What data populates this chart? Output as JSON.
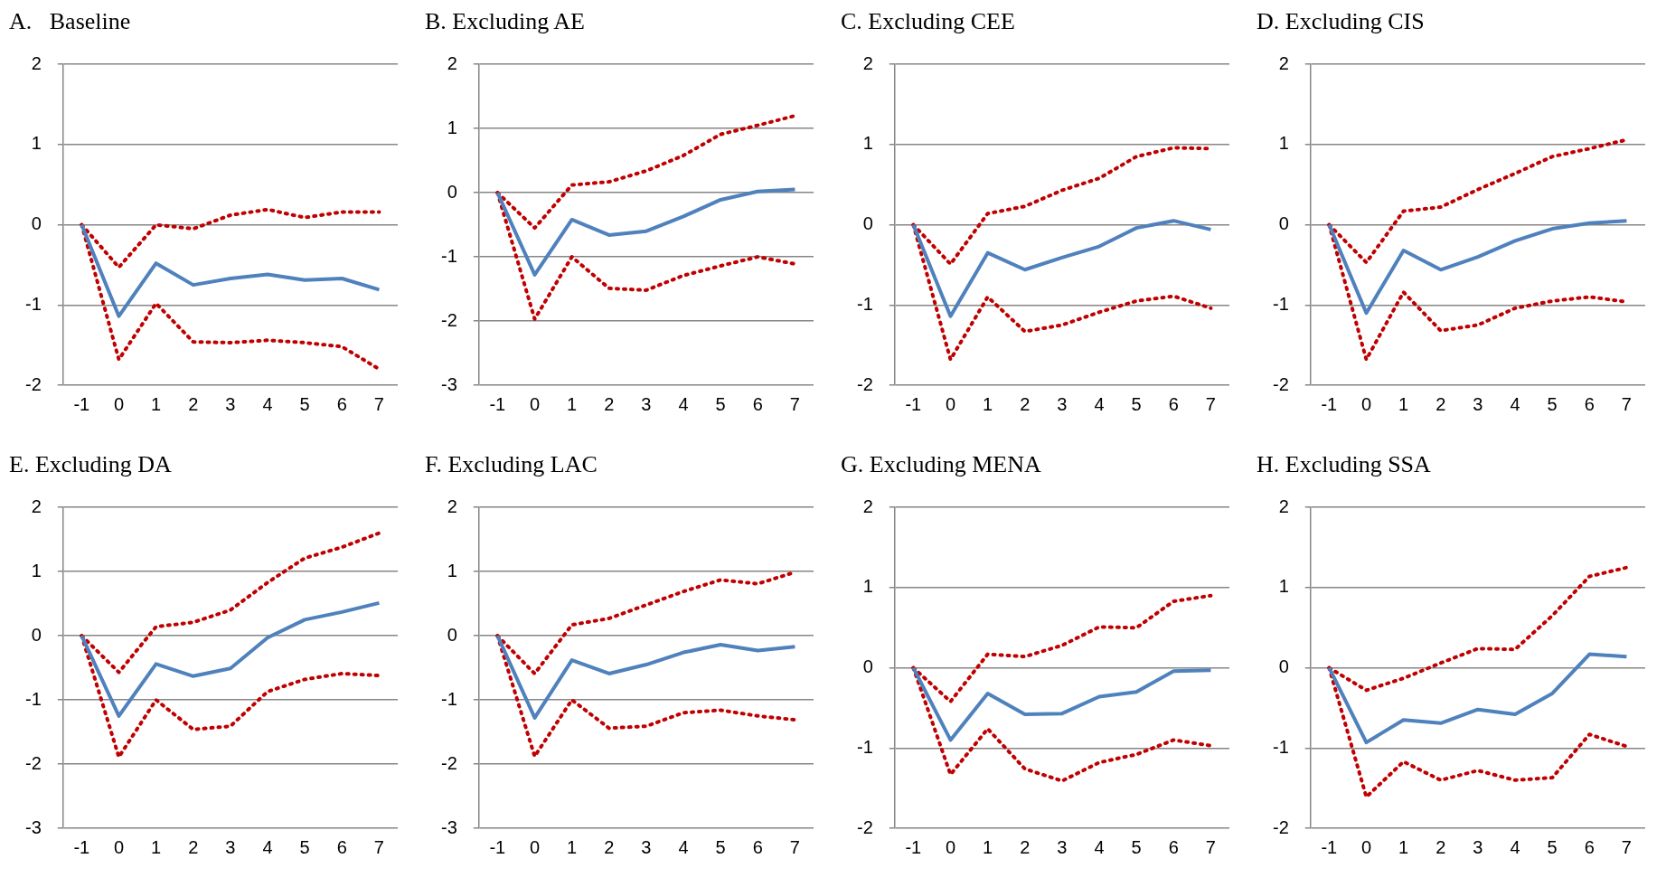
{
  "chart_data": [
    {
      "type": "line",
      "title": "A.   Baseline",
      "categories": [
        "-1",
        "0",
        "1",
        "2",
        "3",
        "4",
        "5",
        "6",
        "7"
      ],
      "ylim": [
        -2,
        2
      ],
      "yticks": [
        -2,
        -1,
        0,
        1,
        2
      ],
      "grid": "y",
      "legend": false,
      "marker": "none",
      "series": [
        {
          "color": "#4f81bd",
          "line_style": "solid",
          "values": [
            0,
            -1.14,
            -0.48,
            -0.75,
            -0.67,
            -0.62,
            -0.69,
            -0.67,
            -0.81
          ]
        },
        {
          "color": "#c00000",
          "line_style": "dotted",
          "values": [
            0,
            -0.53,
            0,
            -0.05,
            0.12,
            0.19,
            0.09,
            0.16,
            0.16
          ]
        },
        {
          "color": "#c00000",
          "line_style": "dotted",
          "values": [
            0,
            -1.68,
            -0.98,
            -1.46,
            -1.47,
            -1.44,
            -1.47,
            -1.52,
            -1.8
          ]
        }
      ]
    },
    {
      "type": "line",
      "title": "B. Excluding AE",
      "categories": [
        "-1",
        "0",
        "1",
        "2",
        "3",
        "4",
        "5",
        "6",
        "7"
      ],
      "ylim": [
        -3,
        2
      ],
      "yticks": [
        -3,
        -2,
        -1,
        0,
        1,
        2
      ],
      "grid": "y",
      "legend": false,
      "marker": "none",
      "series": [
        {
          "color": "#4f81bd",
          "line_style": "solid",
          "values": [
            0,
            -1.28,
            -0.42,
            -0.66,
            -0.6,
            -0.37,
            -0.11,
            0.02,
            0.05
          ]
        },
        {
          "color": "#c00000",
          "line_style": "dotted",
          "values": [
            0,
            -0.55,
            0.12,
            0.17,
            0.34,
            0.58,
            0.91,
            1.05,
            1.2
          ]
        },
        {
          "color": "#c00000",
          "line_style": "dotted",
          "values": [
            0,
            -1.97,
            -1.0,
            -1.49,
            -1.52,
            -1.29,
            -1.14,
            -1.0,
            -1.11
          ]
        }
      ]
    },
    {
      "type": "line",
      "title": "C. Excluding CEE",
      "categories": [
        "-1",
        "0",
        "1",
        "2",
        "3",
        "4",
        "5",
        "6",
        "7"
      ],
      "ylim": [
        -2,
        2
      ],
      "yticks": [
        -2,
        -1,
        0,
        1,
        2
      ],
      "grid": "y",
      "legend": false,
      "marker": "none",
      "series": [
        {
          "color": "#4f81bd",
          "line_style": "solid",
          "values": [
            0,
            -1.14,
            -0.35,
            -0.56,
            -0.41,
            -0.27,
            -0.04,
            0.05,
            -0.06
          ]
        },
        {
          "color": "#c00000",
          "line_style": "dotted",
          "values": [
            0,
            -0.49,
            0.14,
            0.23,
            0.43,
            0.58,
            0.85,
            0.96,
            0.95
          ]
        },
        {
          "color": "#c00000",
          "line_style": "dotted",
          "values": [
            0,
            -1.68,
            -0.9,
            -1.33,
            -1.25,
            -1.09,
            -0.95,
            -0.89,
            -1.04
          ]
        }
      ]
    },
    {
      "type": "line",
      "title": "D. Excluding CIS",
      "categories": [
        "-1",
        "0",
        "1",
        "2",
        "3",
        "4",
        "5",
        "6",
        "7"
      ],
      "ylim": [
        -2,
        2
      ],
      "yticks": [
        -2,
        -1,
        0,
        1,
        2
      ],
      "grid": "y",
      "legend": false,
      "marker": "none",
      "series": [
        {
          "color": "#4f81bd",
          "line_style": "solid",
          "values": [
            0,
            -1.1,
            -0.32,
            -0.56,
            -0.4,
            -0.2,
            -0.05,
            0.02,
            0.05
          ]
        },
        {
          "color": "#c00000",
          "line_style": "dotted",
          "values": [
            0,
            -0.47,
            0.17,
            0.22,
            0.44,
            0.64,
            0.85,
            0.95,
            1.06
          ]
        },
        {
          "color": "#c00000",
          "line_style": "dotted",
          "values": [
            0,
            -1.68,
            -0.84,
            -1.32,
            -1.25,
            -1.04,
            -0.95,
            -0.9,
            -0.96
          ]
        }
      ]
    },
    {
      "type": "line",
      "title": "E. Excluding DA",
      "categories": [
        "-1",
        "0",
        "1",
        "2",
        "3",
        "4",
        "5",
        "6",
        "7"
      ],
      "ylim": [
        -3,
        2
      ],
      "yticks": [
        -3,
        -2,
        -1,
        0,
        1,
        2
      ],
      "grid": "y",
      "legend": false,
      "marker": "none",
      "series": [
        {
          "color": "#4f81bd",
          "line_style": "solid",
          "values": [
            0,
            -1.25,
            -0.44,
            -0.63,
            -0.51,
            -0.03,
            0.25,
            0.37,
            0.51
          ]
        },
        {
          "color": "#c00000",
          "line_style": "dotted",
          "values": [
            0,
            -0.57,
            0.14,
            0.21,
            0.4,
            0.83,
            1.21,
            1.38,
            1.6
          ]
        },
        {
          "color": "#c00000",
          "line_style": "dotted",
          "values": [
            0,
            -1.89,
            -1.0,
            -1.46,
            -1.41,
            -0.87,
            -0.68,
            -0.59,
            -0.62
          ]
        }
      ]
    },
    {
      "type": "line",
      "title": "F. Excluding LAC",
      "categories": [
        "-1",
        "0",
        "1",
        "2",
        "3",
        "4",
        "5",
        "6",
        "7"
      ],
      "ylim": [
        -3,
        2
      ],
      "yticks": [
        -3,
        -2,
        -1,
        0,
        1,
        2
      ],
      "grid": "y",
      "legend": false,
      "marker": "none",
      "series": [
        {
          "color": "#4f81bd",
          "line_style": "solid",
          "values": [
            0,
            -1.28,
            -0.38,
            -0.59,
            -0.45,
            -0.26,
            -0.14,
            -0.23,
            -0.17
          ]
        },
        {
          "color": "#c00000",
          "line_style": "dotted",
          "values": [
            0,
            -0.59,
            0.17,
            0.27,
            0.48,
            0.69,
            0.87,
            0.81,
            0.99
          ]
        },
        {
          "color": "#c00000",
          "line_style": "dotted",
          "values": [
            0,
            -1.88,
            -1.0,
            -1.44,
            -1.41,
            -1.2,
            -1.16,
            -1.25,
            -1.31
          ]
        }
      ]
    },
    {
      "type": "line",
      "title": "G. Excluding MENA",
      "categories": [
        "-1",
        "0",
        "1",
        "2",
        "3",
        "4",
        "5",
        "6",
        "7"
      ],
      "ylim": [
        -2,
        2
      ],
      "yticks": [
        -2,
        -1,
        0,
        1,
        2
      ],
      "grid": "y",
      "legend": false,
      "marker": "none",
      "series": [
        {
          "color": "#4f81bd",
          "line_style": "solid",
          "values": [
            0,
            -0.9,
            -0.32,
            -0.58,
            -0.57,
            -0.36,
            -0.3,
            -0.04,
            -0.03
          ]
        },
        {
          "color": "#c00000",
          "line_style": "dotted",
          "values": [
            0,
            -0.42,
            0.17,
            0.14,
            0.28,
            0.51,
            0.5,
            0.83,
            0.9
          ]
        },
        {
          "color": "#c00000",
          "line_style": "dotted",
          "values": [
            0,
            -1.33,
            -0.76,
            -1.26,
            -1.41,
            -1.18,
            -1.08,
            -0.9,
            -0.97
          ]
        }
      ]
    },
    {
      "type": "line",
      "title": "H. Excluding SSA",
      "categories": [
        "-1",
        "0",
        "1",
        "2",
        "3",
        "4",
        "5",
        "6",
        "7"
      ],
      "ylim": [
        -2,
        2
      ],
      "yticks": [
        -2,
        -1,
        0,
        1,
        2
      ],
      "grid": "y",
      "legend": false,
      "marker": "none",
      "series": [
        {
          "color": "#4f81bd",
          "line_style": "solid",
          "values": [
            0,
            -0.93,
            -0.65,
            -0.69,
            -0.52,
            -0.58,
            -0.32,
            0.17,
            0.14
          ]
        },
        {
          "color": "#c00000",
          "line_style": "dotted",
          "values": [
            0,
            -0.28,
            -0.13,
            0.06,
            0.24,
            0.23,
            0.65,
            1.14,
            1.25
          ]
        },
        {
          "color": "#c00000",
          "line_style": "dotted",
          "values": [
            0,
            -1.61,
            -1.17,
            -1.4,
            -1.28,
            -1.4,
            -1.37,
            -0.83,
            -0.98
          ]
        }
      ]
    }
  ]
}
